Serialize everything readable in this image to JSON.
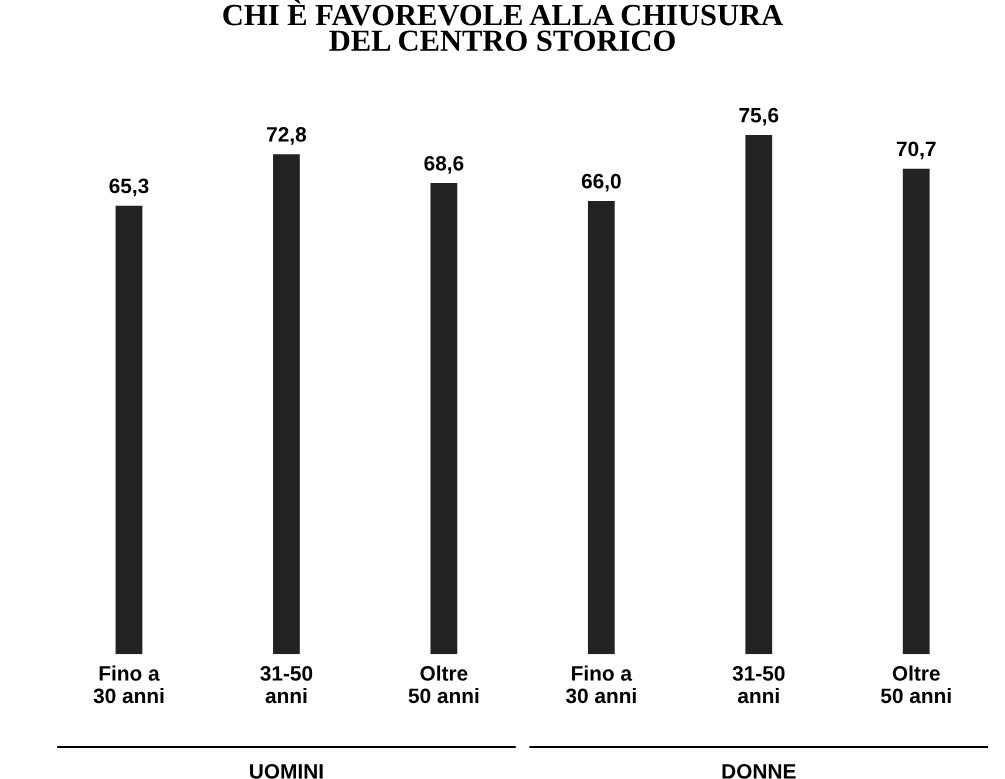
{
  "chart_data": {
    "type": "bar",
    "title": "CHI È FAVOREVOLE ALLA CHIUSURA\nDEL CENTRO STORICO",
    "categories": [
      "Fino a\n30 anni",
      "31-50\nanni",
      "Oltre\n50 anni",
      "Fino a\n30 anni",
      "31-50\nanni",
      "Oltre\n50 anni"
    ],
    "values": [
      65.3,
      72.8,
      68.6,
      66.0,
      75.6,
      70.7
    ],
    "value_labels": [
      "65,3",
      "72,8",
      "68,6",
      "66,0",
      "75,6",
      "70,7"
    ],
    "color": "#222222",
    "tick_labels": "x",
    "grid": false,
    "legend": false,
    "annotations": [
      "UOMINI",
      "DONNE"
    ]
  }
}
